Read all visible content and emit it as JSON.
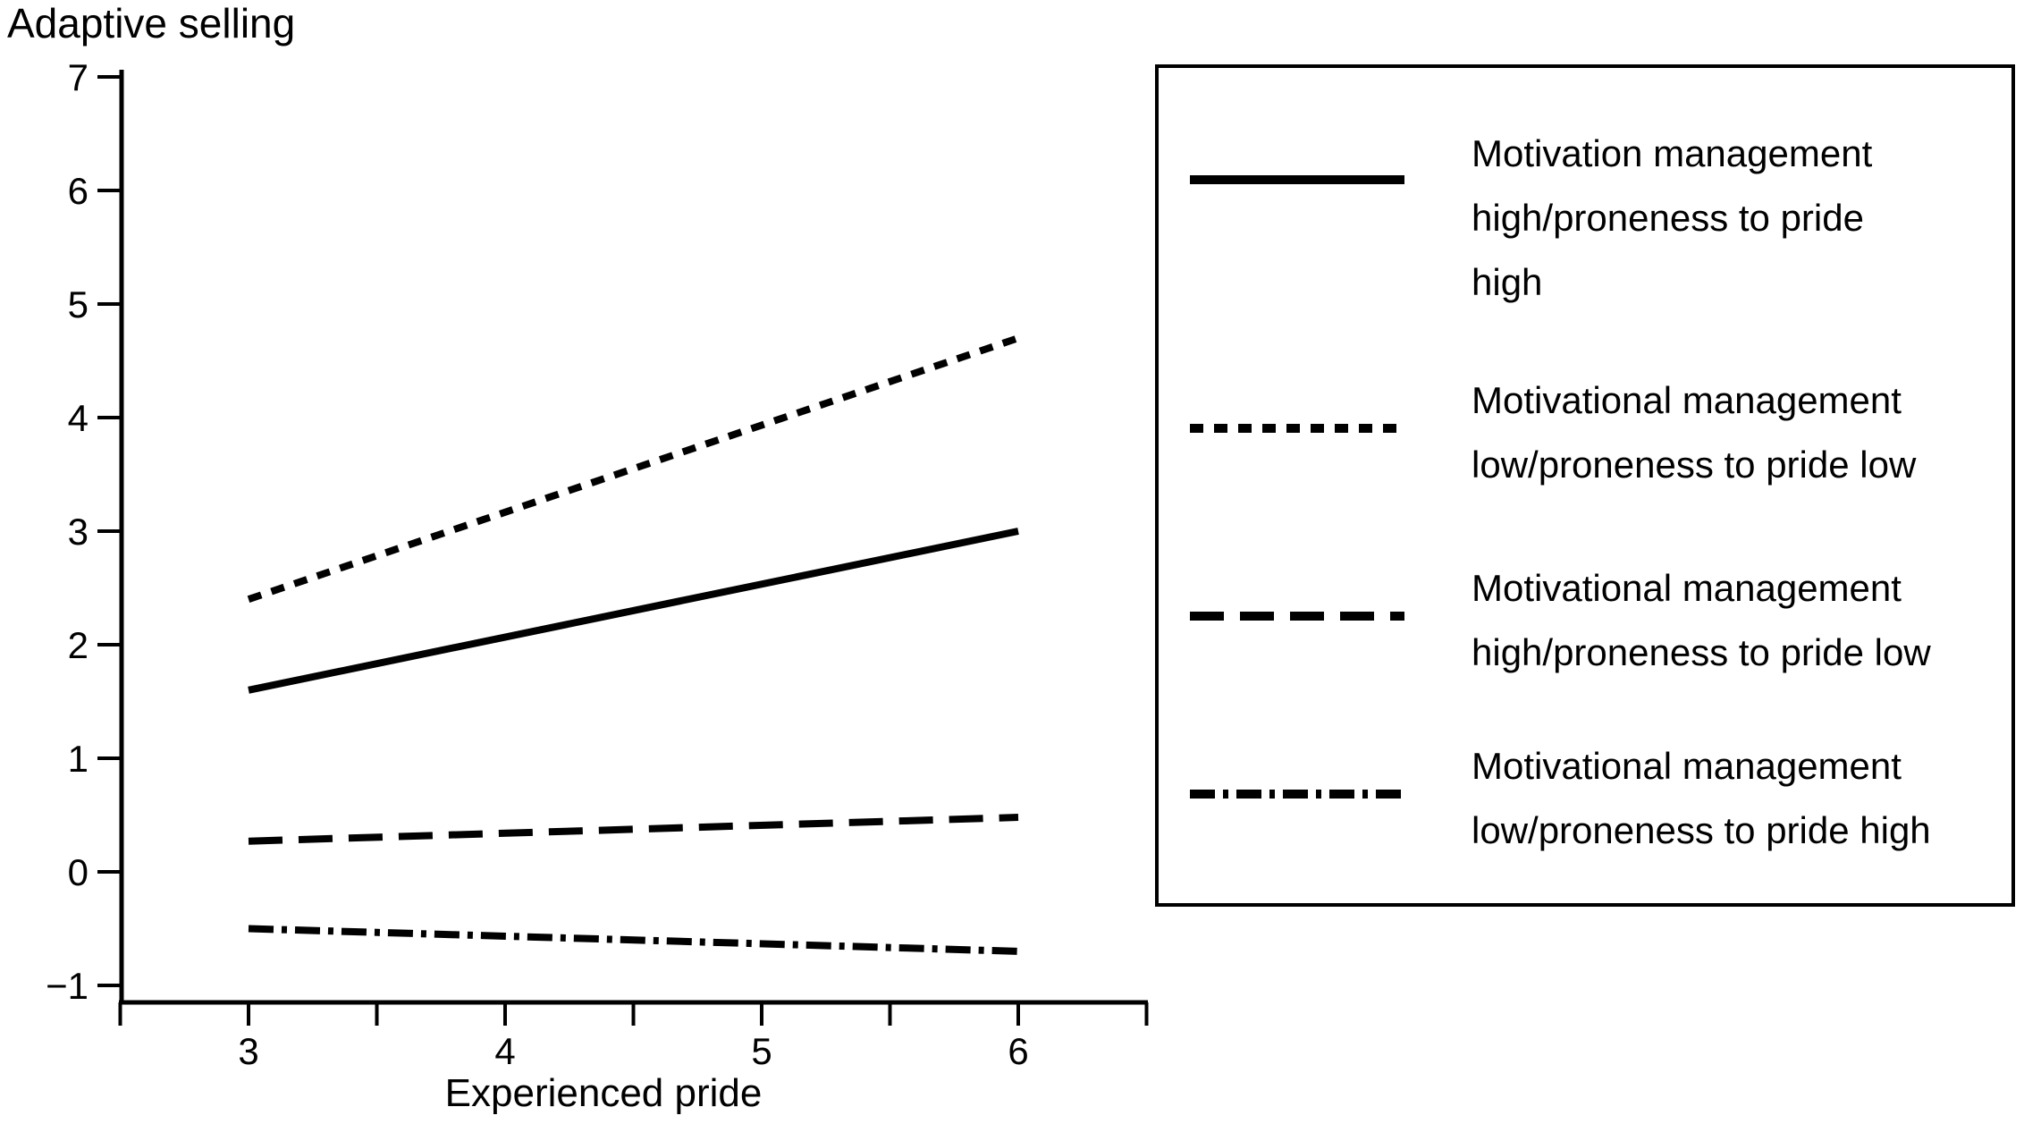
{
  "figure": {
    "background": "#ffffff",
    "line_color": "#000000"
  },
  "chart_data": {
    "type": "line",
    "title": "",
    "ylabel": "Adaptive selling",
    "xlabel": "Experienced pride",
    "x": [
      3,
      6
    ],
    "series": [
      {
        "name": "Motivation management high/proneness to pride high",
        "style": "solid",
        "values": [
          1.6,
          3.0
        ]
      },
      {
        "name": "Motivational management low/proneness to pride low",
        "style": "dotted",
        "values": [
          2.4,
          4.7
        ]
      },
      {
        "name": "Motivational management high/proneness to pride low",
        "style": "dashed",
        "values": [
          0.27,
          0.48
        ]
      },
      {
        "name": "Motivational management low/proneness to pride high",
        "style": "dashdot",
        "values": [
          -0.5,
          -0.7
        ]
      }
    ],
    "xticks": [
      3,
      4,
      5,
      6
    ],
    "xminorticks": [
      2.5,
      3.5,
      4.5,
      5.5,
      6.5
    ],
    "yticks": [
      7,
      6,
      5,
      4,
      3,
      2,
      1,
      0,
      -1
    ],
    "xlim": [
      2.5,
      6.5
    ],
    "ylim": [
      -1,
      7
    ],
    "grid": false,
    "legend_position": "right",
    "line_color": "#000000"
  },
  "axes": {
    "y_title": "Adaptive selling",
    "x_title": "Experienced pride",
    "y_tick_labels": [
      "7",
      "6",
      "5",
      "4",
      "3",
      "2",
      "1",
      "0",
      "−1"
    ],
    "x_tick_labels": [
      "3",
      "4",
      "5",
      "6"
    ]
  },
  "legend": {
    "items": [
      {
        "style": "solid",
        "lines": [
          "Motivation management",
          "high/proneness to pride",
          "high"
        ]
      },
      {
        "style": "dotted",
        "lines": [
          "Motivational management",
          "low/proneness to pride low"
        ]
      },
      {
        "style": "dashed",
        "lines": [
          "Motivational management",
          "high/proneness to pride low"
        ]
      },
      {
        "style": "dashdot",
        "lines": [
          "Motivational management",
          "low/proneness to pride high"
        ]
      }
    ]
  }
}
